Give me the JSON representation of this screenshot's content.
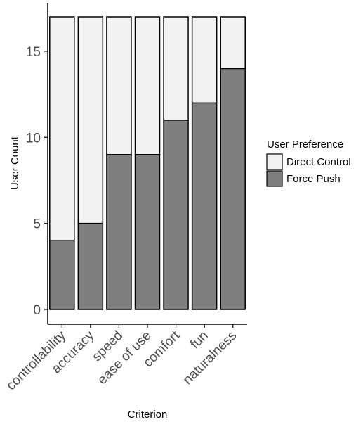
{
  "chart_data": {
    "type": "bar",
    "stacked": true,
    "xlabel": "Criterion",
    "ylabel": "User Count",
    "ylim": [
      0,
      17
    ],
    "yticks": [
      0,
      5,
      10,
      15
    ],
    "grid": false,
    "categories": [
      "controllability",
      "accuracy",
      "speed",
      "ease of use",
      "comfort",
      "fun",
      "naturalness"
    ],
    "series": [
      {
        "name": "Force Push",
        "color": "#7f7f7f",
        "values": [
          4,
          5,
          9,
          9,
          11,
          12,
          14
        ]
      },
      {
        "name": "Direct Control",
        "color": "#f2f2f2",
        "values": [
          13,
          12,
          8,
          8,
          6,
          5,
          3
        ]
      }
    ],
    "legend": {
      "title": "User Preference",
      "position": "right",
      "entries": [
        "Direct Control",
        "Force Push"
      ]
    }
  }
}
